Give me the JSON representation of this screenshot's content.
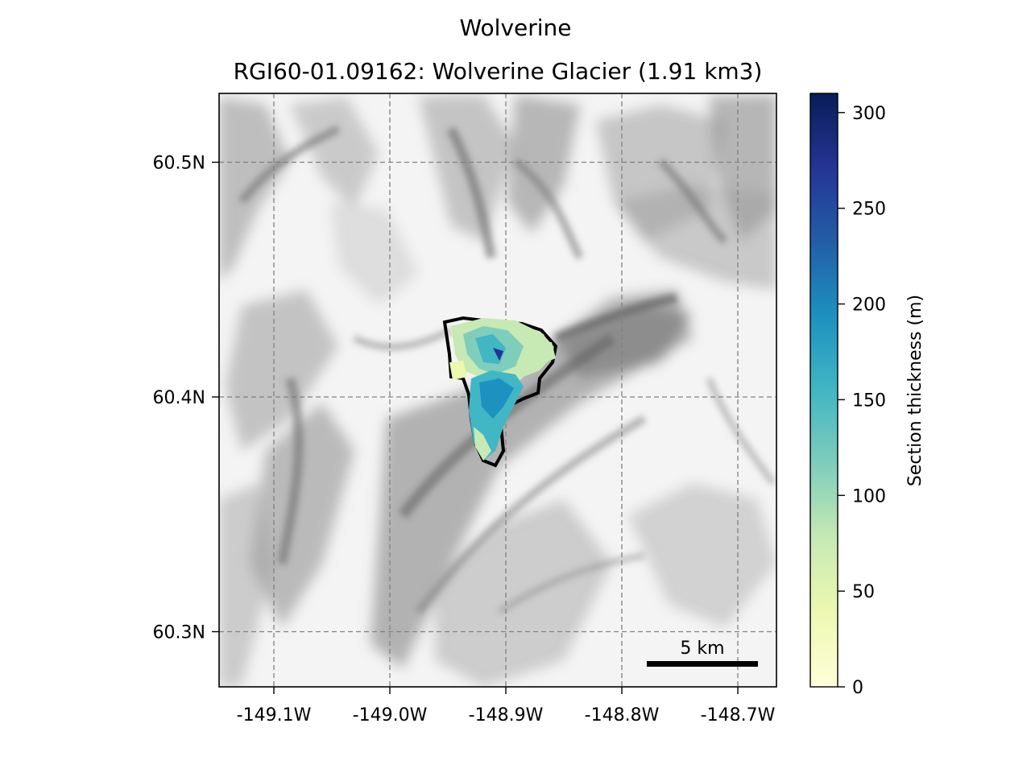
{
  "figure": {
    "suptitle": "Wolverine",
    "title": "RGI60-01.09162: Wolverine Glacier (1.91 km3)"
  },
  "map": {
    "x_ticks": [
      {
        "value": -149.1,
        "label": "-149.1W"
      },
      {
        "value": -149.0,
        "label": "-149.0W"
      },
      {
        "value": -148.9,
        "label": "-148.9W"
      },
      {
        "value": -148.8,
        "label": "-148.8W"
      },
      {
        "value": -148.7,
        "label": "-148.7W"
      }
    ],
    "y_ticks": [
      {
        "value": 60.5,
        "label": "60.5N"
      },
      {
        "value": 60.4,
        "label": "60.4N"
      },
      {
        "value": 60.3,
        "label": "60.3N"
      }
    ],
    "grid": true,
    "scale_bar_label": "5 km",
    "background": "hillshade",
    "glacier_outline_color": "#000000"
  },
  "colorbar": {
    "label": "Section thickness (m)",
    "cmap": "YlGnBu",
    "range": [
      0,
      310
    ],
    "ticks": [
      {
        "value": 0,
        "label": "0"
      },
      {
        "value": 50,
        "label": "50"
      },
      {
        "value": 100,
        "label": "100"
      },
      {
        "value": 150,
        "label": "150"
      },
      {
        "value": 200,
        "label": "200"
      },
      {
        "value": 250,
        "label": "250"
      },
      {
        "value": 300,
        "label": "300"
      }
    ]
  }
}
